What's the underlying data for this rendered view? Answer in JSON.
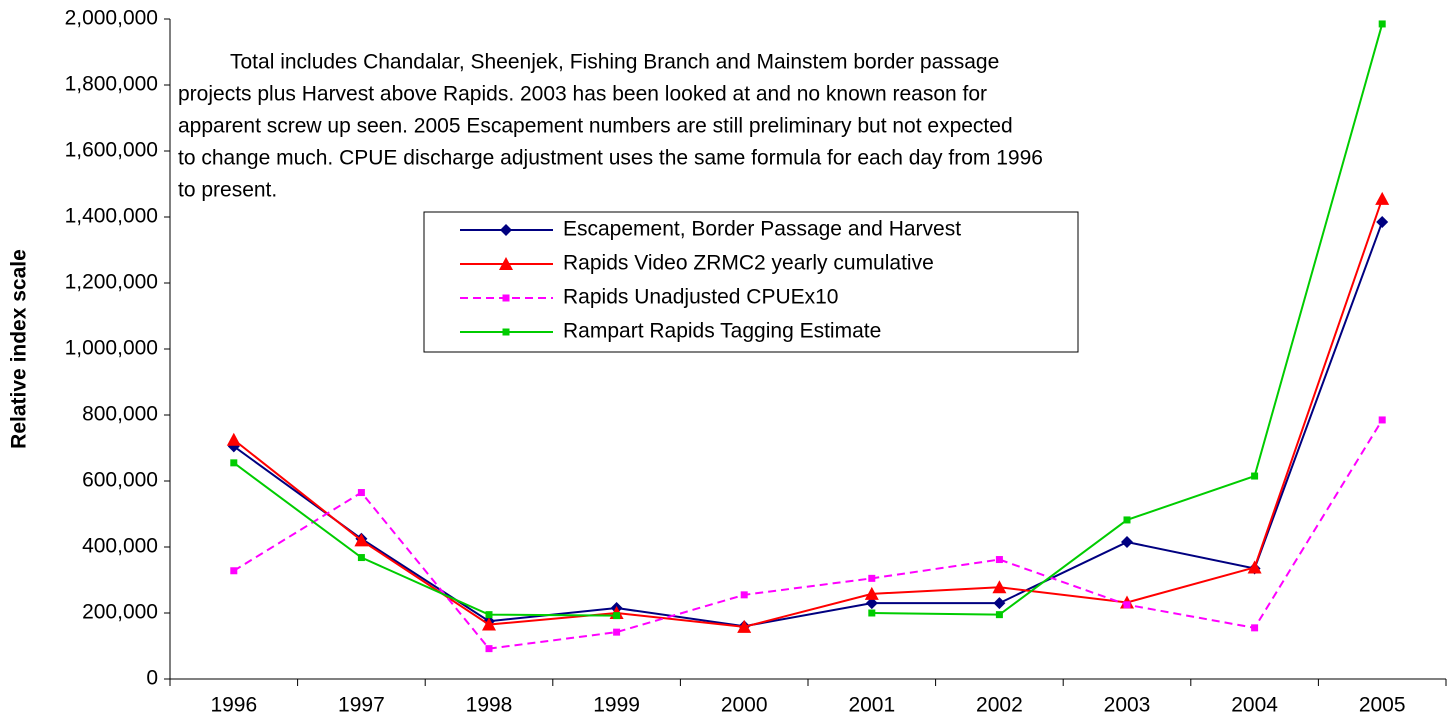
{
  "chart_data": {
    "type": "line",
    "ylabel": "Relative index scale",
    "annotation": [
      "Total includes Chandalar, Sheenjek, Fishing Branch and Mainstem border passage",
      "projects plus Harvest above Rapids.  2003 has been looked at and no known reason for",
      "apparent screw up seen.   2005 Escapement numbers are still preliminary but not expected",
      "to change much. CPUE discharge adjustment uses the same formula for each day from 1996",
      "to present."
    ],
    "categories": [
      "1996",
      "1997",
      "1998",
      "1999",
      "2000",
      "2001",
      "2002",
      "2003",
      "2004",
      "2005"
    ],
    "series": [
      {
        "name": "Escapement, Border Passage and Harvest",
        "color": "#000080",
        "marker": "diamond",
        "line_style": "solid",
        "values": [
          705000,
          425000,
          175000,
          215000,
          160000,
          230000,
          230000,
          415000,
          335000,
          1385000
        ]
      },
      {
        "name": "Rapids Video ZRMC2 yearly cumulative",
        "color": "#ff0000",
        "marker": "triangle",
        "line_style": "solid",
        "values": [
          725000,
          420000,
          165000,
          200000,
          158000,
          258000,
          278000,
          232000,
          338000,
          1455000
        ]
      },
      {
        "name": "Rapids Unadjusted CPUEx10",
        "color": "#ff00ff",
        "marker": "square",
        "line_style": "dashed",
        "values": [
          328000,
          565000,
          92000,
          142000,
          255000,
          305000,
          362000,
          225000,
          155000,
          785000
        ]
      },
      {
        "name": "Rampart Rapids Tagging Estimate",
        "color": "#00cc00",
        "marker": "square",
        "line_style": "solid",
        "values": [
          655000,
          368000,
          195000,
          192000,
          null,
          200000,
          195000,
          482000,
          615000,
          1985000
        ]
      }
    ],
    "ylim": [
      0,
      2000000
    ],
    "yticks": [
      0,
      {
        "value": 200000,
        "label": "200,000"
      },
      {
        "value": 400000,
        "label": "400,000"
      },
      {
        "value": 600000,
        "label": "600,000"
      },
      {
        "value": 800000,
        "label": "800,000"
      },
      {
        "value": 1000000,
        "label": "1,000,000"
      },
      {
        "value": 1200000,
        "label": "1,200,000"
      },
      {
        "value": 1400000,
        "label": "1,400,000"
      },
      {
        "value": 1600000,
        "label": "1,600,000"
      },
      {
        "value": 1800000,
        "label": "1,800,000"
      },
      {
        "value": 2000000,
        "label": "2,000,000"
      }
    ],
    "grid": false
  }
}
